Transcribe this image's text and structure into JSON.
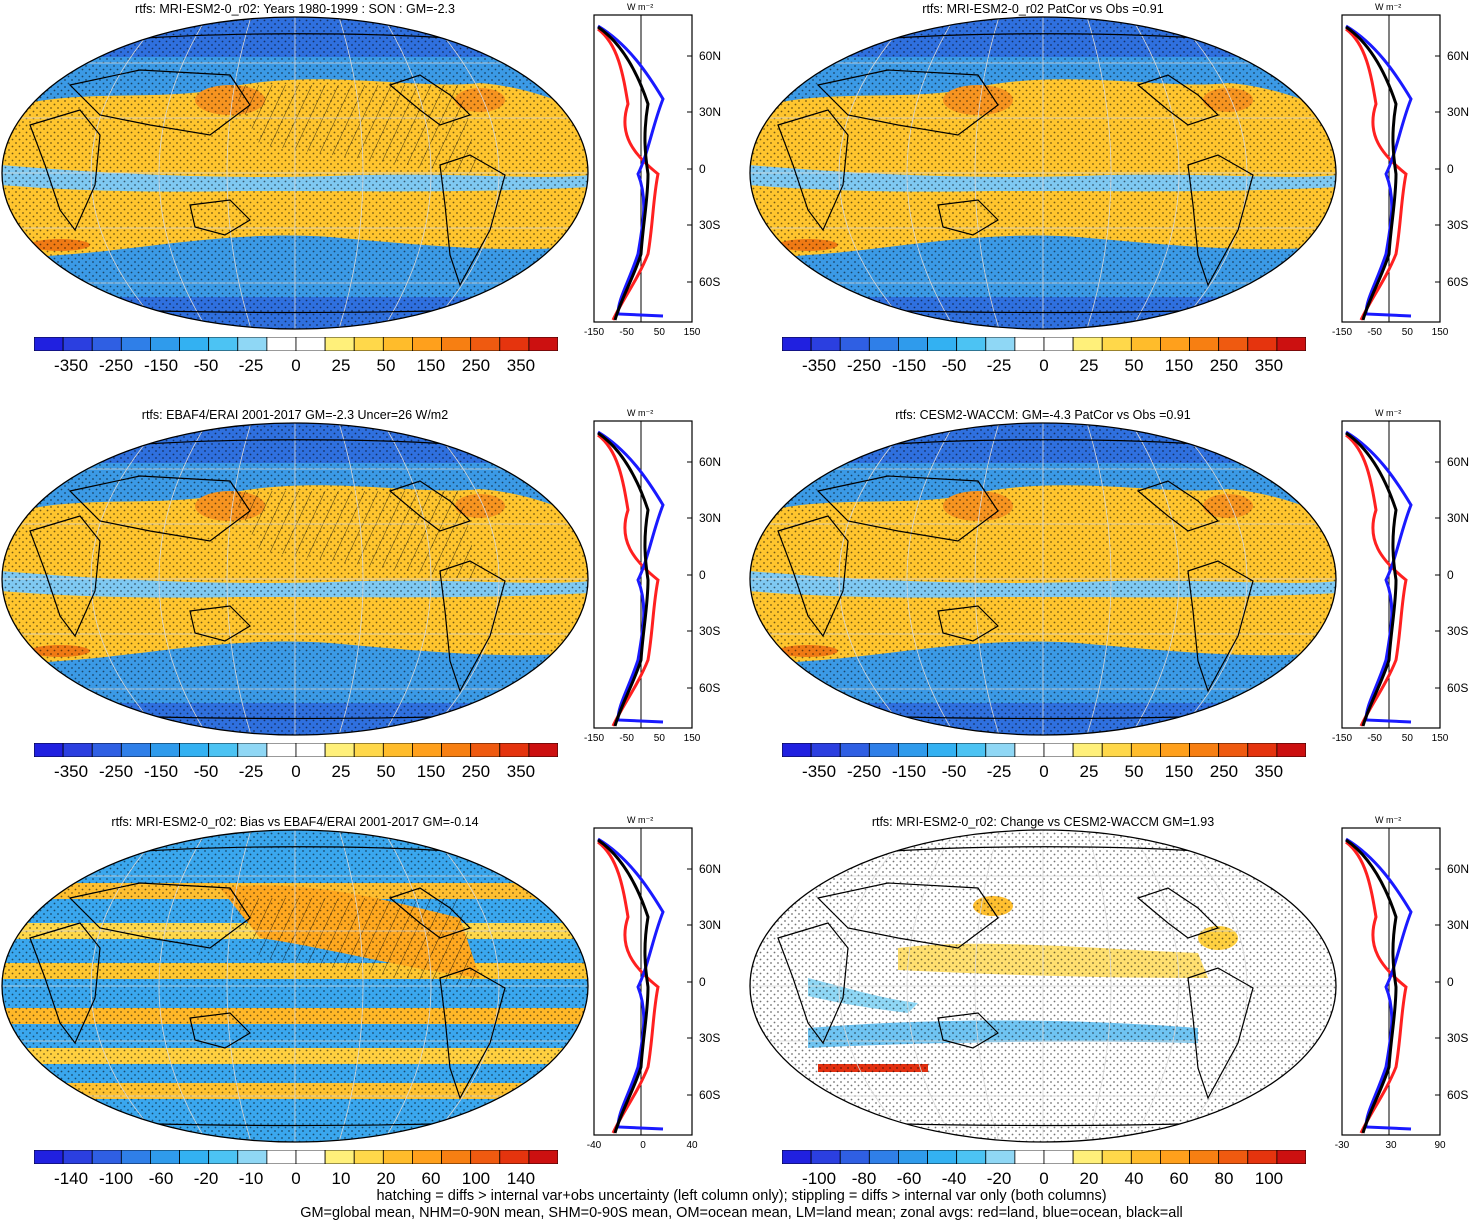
{
  "colors": {
    "scale": [
      "#2020e0",
      "#2b3fe0",
      "#2f5fe3",
      "#2f7fe8",
      "#2f9bec",
      "#33b1f2",
      "#4cc3f3",
      "#8fd7f5",
      "#ffffff",
      "#ffffff",
      "#fff07a",
      "#ffd84a",
      "#ffbc2b",
      "#ffa01c",
      "#f77f12",
      "#ef5a10",
      "#e5340e",
      "#cc1010"
    ],
    "ocean_blue": "#3b9ae6",
    "warm": "#ffc52e",
    "red_line": "#ff2020",
    "blue_line": "#1a1aff",
    "black_line": "#000000"
  },
  "panels": [
    {
      "title": "rtfs: MRI-ESM2-0_r02: Years 1980-1999 : SON : GM=-2.3",
      "colorbar_labels": [
        "-350",
        "-250",
        "-150",
        "-50",
        "-25",
        "0",
        "25",
        "50",
        "150",
        "250",
        "350"
      ],
      "zonal_xticks": [
        "-150",
        "-50",
        "50",
        "150"
      ],
      "units": "W m⁻²",
      "lat_labels": [
        "60N",
        "30N",
        "0",
        "30S",
        "60S"
      ],
      "map_mode": "full"
    },
    {
      "title": "rtfs: MRI-ESM2-0_r02 PatCor vs Obs =0.91",
      "colorbar_labels": [
        "-350",
        "-250",
        "-150",
        "-50",
        "-25",
        "0",
        "25",
        "50",
        "150",
        "250",
        "350"
      ],
      "zonal_xticks": [
        "-150",
        "-50",
        "50",
        "150"
      ],
      "units": "W m⁻²",
      "lat_labels": [
        "60N",
        "30N",
        "0",
        "30S",
        "60S"
      ],
      "map_mode": "full"
    },
    {
      "title": "rtfs: EBAF4/ERAI 2001-2017 GM=-2.3 Uncer=26 W/m2",
      "colorbar_labels": [
        "-350",
        "-250",
        "-150",
        "-50",
        "-25",
        "0",
        "25",
        "50",
        "150",
        "250",
        "350"
      ],
      "zonal_xticks": [
        "-150",
        "-50",
        "50",
        "150"
      ],
      "units": "W m⁻²",
      "lat_labels": [
        "60N",
        "30N",
        "0",
        "30S",
        "60S"
      ],
      "map_mode": "full"
    },
    {
      "title": "rtfs: CESM2-WACCM: GM=-4.3 PatCor vs Obs =0.91",
      "colorbar_labels": [
        "-350",
        "-250",
        "-150",
        "-50",
        "-25",
        "0",
        "25",
        "50",
        "150",
        "250",
        "350"
      ],
      "zonal_xticks": [
        "-150",
        "-50",
        "50",
        "150"
      ],
      "units": "W m⁻²",
      "lat_labels": [
        "60N",
        "30N",
        "0",
        "30S",
        "60S"
      ],
      "map_mode": "full"
    },
    {
      "title": "rtfs: MRI-ESM2-0_r02: Bias vs EBAF4/ERAI 2001-2017  GM=-0.14",
      "colorbar_labels": [
        "-140",
        "-100",
        "-60",
        "-20",
        "-10",
        "0",
        "10",
        "20",
        "60",
        "100",
        "140"
      ],
      "zonal_xticks": [
        "-40",
        "0",
        "40"
      ],
      "units": "W m⁻²",
      "lat_labels": [
        "60N",
        "30N",
        "0",
        "30S",
        "60S"
      ],
      "map_mode": "bias"
    },
    {
      "title": "rtfs: MRI-ESM2-0_r02: Change vs CESM2-WACCM GM=1.93",
      "colorbar_labels": [
        "-100",
        "-80",
        "-60",
        "-40",
        "-20",
        "0",
        "20",
        "40",
        "60",
        "80",
        "100"
      ],
      "zonal_xticks": [
        "-30",
        "30",
        "90"
      ],
      "units": "W m⁻²",
      "lat_labels": [
        "60N",
        "30N",
        "0",
        "30S",
        "60S"
      ],
      "map_mode": "change"
    }
  ],
  "footer": {
    "line1": "hatching = diffs > internal var+obs uncertainty (left column only); stippling = diffs > internal var only (both columns)",
    "line2": "GM=global mean, NHM=0-90N mean, SHM=0-90S mean, OM=ocean mean, LM=land mean; zonal avgs: red=land, blue=ocean, black=all"
  }
}
